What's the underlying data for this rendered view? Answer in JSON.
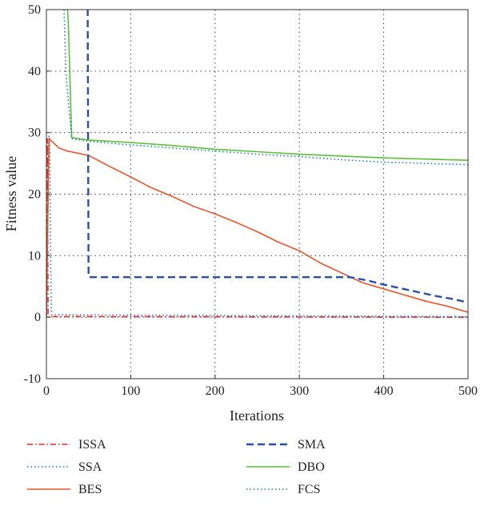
{
  "chart_data": {
    "type": "line",
    "title": "",
    "xlabel": "Iterations",
    "ylabel": "Fitness value",
    "xlim": [
      0,
      500
    ],
    "ylim": [
      -10,
      50
    ],
    "xticks": [
      0,
      100,
      200,
      300,
      400,
      500
    ],
    "yticks": [
      -10,
      0,
      10,
      20,
      30,
      40,
      50
    ],
    "grid": true,
    "legend_position": "bottom",
    "series": [
      {
        "name": "ISSA",
        "color": "#e8282b",
        "dash": "dashdot",
        "x": [
          0,
          1,
          2,
          3,
          500
        ],
        "y": [
          0,
          29,
          0.5,
          0.1,
          0.0
        ]
      },
      {
        "name": "SSA",
        "color": "#1a7cc4",
        "dash": "dot",
        "x": [
          0,
          3,
          4,
          5,
          6,
          500
        ],
        "y": [
          0,
          29.5,
          29,
          10,
          0.4,
          0.1
        ]
      },
      {
        "name": "BES",
        "color": "#e8552b",
        "dash": "solid",
        "x": [
          0,
          3,
          5,
          15,
          25,
          50,
          75,
          100,
          125,
          150,
          175,
          200,
          225,
          250,
          275,
          300,
          325,
          350,
          375,
          400,
          425,
          450,
          475,
          500
        ],
        "y": [
          0,
          29,
          28.8,
          27.5,
          27,
          26.3,
          24.5,
          22.8,
          21,
          19.6,
          18,
          16.8,
          15.4,
          13.9,
          12.2,
          10.8,
          8.8,
          7.2,
          5.6,
          4.6,
          3.6,
          2.6,
          1.8,
          0.8
        ]
      },
      {
        "name": "SMA",
        "color": "#2a4fa8",
        "dash": "dashed",
        "x": [
          48,
          49,
          50,
          51,
          360,
          380,
          400,
          420,
          440,
          460,
          480,
          500
        ],
        "y": [
          50,
          50,
          6.6,
          6.5,
          6.5,
          6.0,
          5.3,
          4.7,
          4.1,
          3.5,
          3.0,
          2.4
        ]
      },
      {
        "name": "DBO",
        "color": "#5cbf3a",
        "dash": "solid",
        "x": [
          25,
          26,
          30,
          50,
          100,
          150,
          200,
          250,
          300,
          350,
          400,
          450,
          500
        ],
        "y": [
          50,
          48,
          29.2,
          28.8,
          28.4,
          27.9,
          27.3,
          26.9,
          26.5,
          26.2,
          25.9,
          25.7,
          25.5
        ]
      },
      {
        "name": "FCS",
        "color": "#1a7cc4",
        "dash": "dot",
        "x": [
          21,
          23,
          30,
          50,
          100,
          150,
          200,
          250,
          300,
          350,
          400,
          450,
          500
        ],
        "y": [
          50,
          40,
          29,
          28.6,
          28,
          27.5,
          27,
          26.5,
          26.1,
          25.6,
          25.2,
          25.0,
          24.8
        ]
      }
    ]
  }
}
